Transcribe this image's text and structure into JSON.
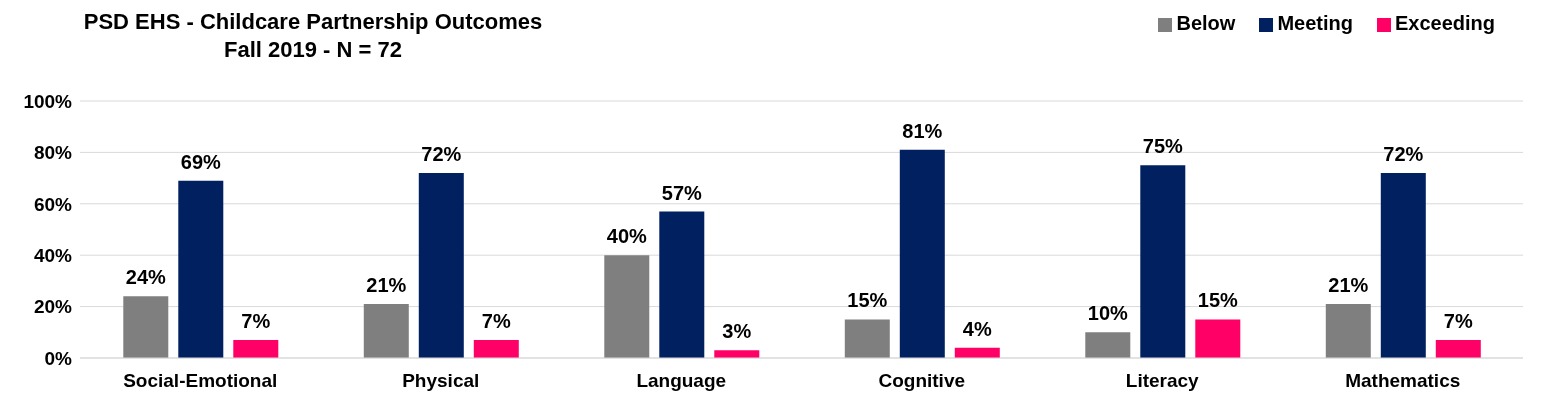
{
  "chart_data": {
    "type": "bar",
    "title": "PSD EHS - Childcare Partnership Outcomes",
    "subtitle": "Fall 2019 - N = 72",
    "categories": [
      "Social-Emotional",
      "Physical",
      "Language",
      "Cognitive",
      "Literacy",
      "Mathematics"
    ],
    "series": [
      {
        "name": "Below",
        "color": "#7f7f7f",
        "values": [
          24,
          21,
          40,
          15,
          10,
          21
        ],
        "value_labels": [
          "24%",
          "21%",
          "40%",
          "15%",
          "10%",
          "21%"
        ]
      },
      {
        "name": "Meeting",
        "color": "#002060",
        "values": [
          69,
          72,
          57,
          81,
          75,
          72
        ],
        "value_labels": [
          "69%",
          "72%",
          "57%",
          "81%",
          "75%",
          "72%"
        ]
      },
      {
        "name": "Exceeding",
        "color": "#ff0066",
        "values": [
          7,
          7,
          3,
          4,
          15,
          7
        ],
        "value_labels": [
          "7%",
          "7%",
          "3%",
          "4%",
          "15%",
          "7%"
        ]
      }
    ],
    "ylim": [
      0,
      100
    ],
    "yticks": [
      {
        "value": 0,
        "label": "0%"
      },
      {
        "value": 20,
        "label": "20%"
      },
      {
        "value": 40,
        "label": "40%"
      },
      {
        "value": 60,
        "label": "60%"
      },
      {
        "value": 80,
        "label": "80%"
      },
      {
        "value": 100,
        "label": "100%"
      }
    ],
    "grid": "y",
    "legend": "top right"
  }
}
